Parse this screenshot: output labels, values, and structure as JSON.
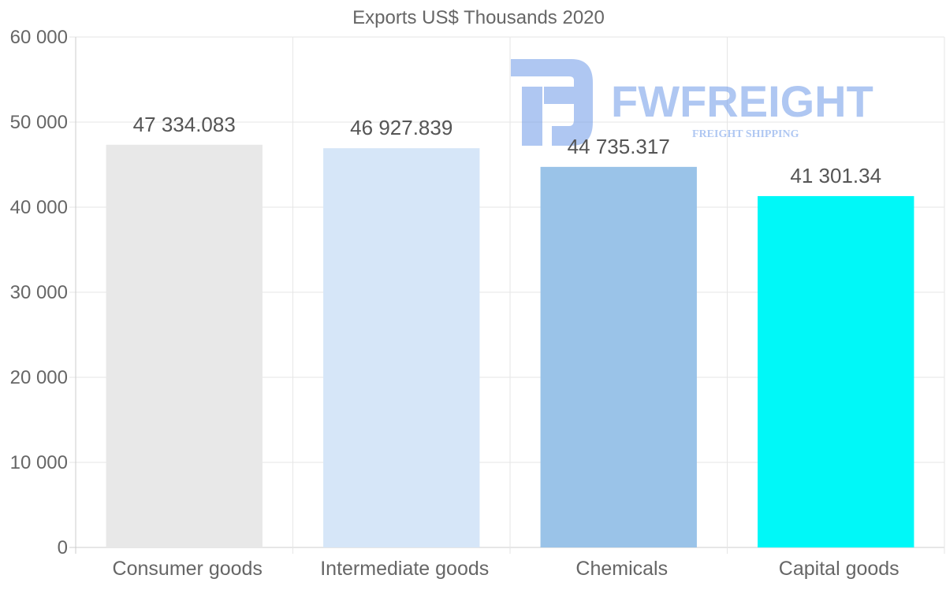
{
  "chart_data": {
    "type": "bar",
    "title": "Exports US$ Thousands 2020",
    "categories": [
      "Consumer goods",
      "Intermediate goods",
      "Chemicals",
      "Capital goods"
    ],
    "values": [
      47334.083,
      46927.839,
      44735.317,
      41301.34
    ],
    "value_labels": [
      "47 334.083",
      "46 927.839",
      "44 735.317",
      "41 301.34"
    ],
    "colors": [
      "#e8e8e8",
      "#d6e6f8",
      "#9ac3e8",
      "#00f8f8"
    ],
    "yticks": [
      "0",
      "10 000",
      "20 000",
      "30 000",
      "40 000",
      "50 000",
      "60 000"
    ],
    "ylim": [
      0,
      60000
    ],
    "xlabel": "",
    "ylabel": "",
    "grid": true
  },
  "watermark": {
    "brand": "FWFREIGHT",
    "tagline": "FREIGHT SHIPPING",
    "color": "#6f9be8"
  }
}
